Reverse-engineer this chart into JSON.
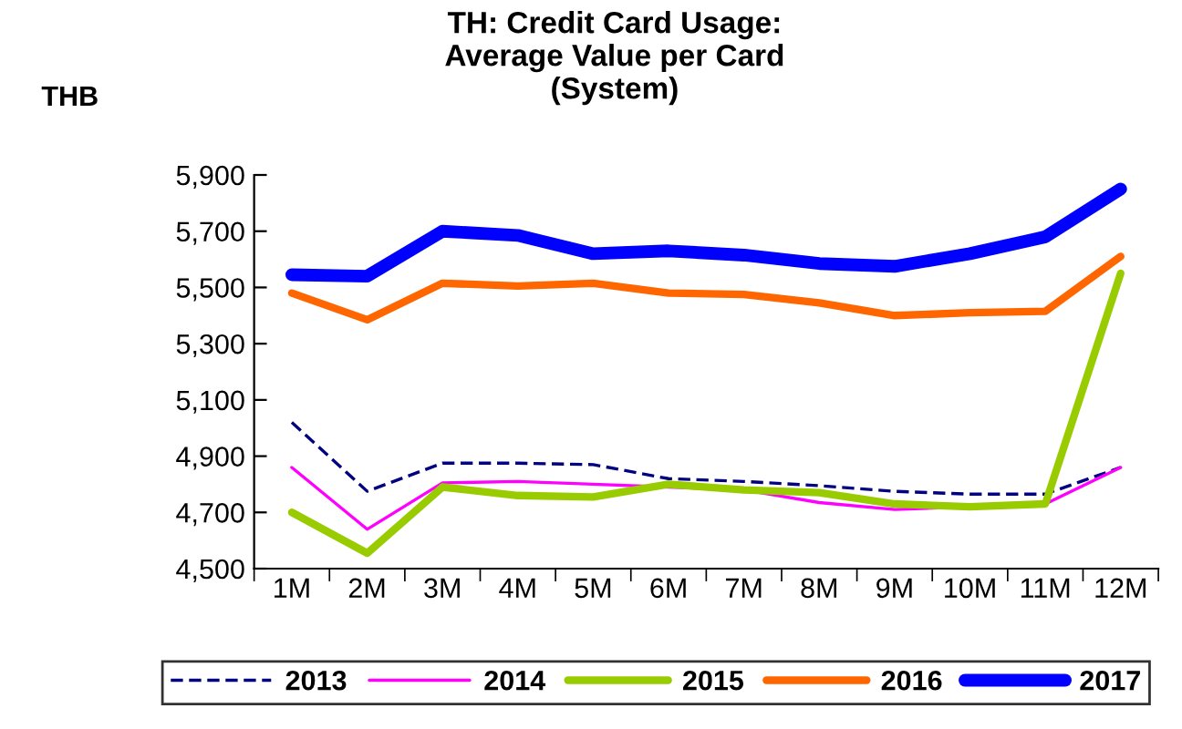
{
  "chart_data": {
    "type": "line",
    "title": "TH: Credit Card Usage:\nAverage Value per Card\n(System)",
    "ylabel": "THB",
    "categories": [
      "1M",
      "2M",
      "3M",
      "4M",
      "5M",
      "6M",
      "7M",
      "8M",
      "9M",
      "10M",
      "11M",
      "12M"
    ],
    "ylim": [
      4500,
      5900
    ],
    "yticks": [
      {
        "value": 4500,
        "label": "4,500"
      },
      {
        "value": 4700,
        "label": "4,700"
      },
      {
        "value": 4900,
        "label": "4,900"
      },
      {
        "value": 5100,
        "label": "5,100"
      },
      {
        "value": 5300,
        "label": "5,300"
      },
      {
        "value": 5500,
        "label": "5,500"
      },
      {
        "value": 5700,
        "label": "5,700"
      },
      {
        "value": 5900,
        "label": "5,900"
      }
    ],
    "grid": false,
    "legend": "bottom",
    "marker": "none",
    "series": [
      {
        "name": "2013",
        "color": "#000080",
        "line_style": "dashed",
        "values": [
          5020,
          4775,
          4875,
          4875,
          4870,
          4820,
          4810,
          4795,
          4775,
          4765,
          4765,
          4860
        ]
      },
      {
        "name": "2014",
        "color": "#ff00ff",
        "values": [
          4860,
          4640,
          4805,
          4810,
          4800,
          4790,
          4780,
          4735,
          4710,
          4720,
          4730,
          4860
        ]
      },
      {
        "name": "2015",
        "color": "#99cc00",
        "values": [
          4700,
          4555,
          4790,
          4760,
          4755,
          4800,
          4780,
          4770,
          4730,
          4720,
          4730,
          5550
        ]
      },
      {
        "name": "2016",
        "color": "#ff6600",
        "values": [
          5480,
          5385,
          5515,
          5505,
          5515,
          5480,
          5475,
          5445,
          5400,
          5410,
          5415,
          5610
        ]
      },
      {
        "name": "2017",
        "color": "#0000ff",
        "values": [
          5545,
          5540,
          5700,
          5685,
          5620,
          5630,
          5615,
          5585,
          5575,
          5620,
          5680,
          5850
        ]
      }
    ]
  }
}
